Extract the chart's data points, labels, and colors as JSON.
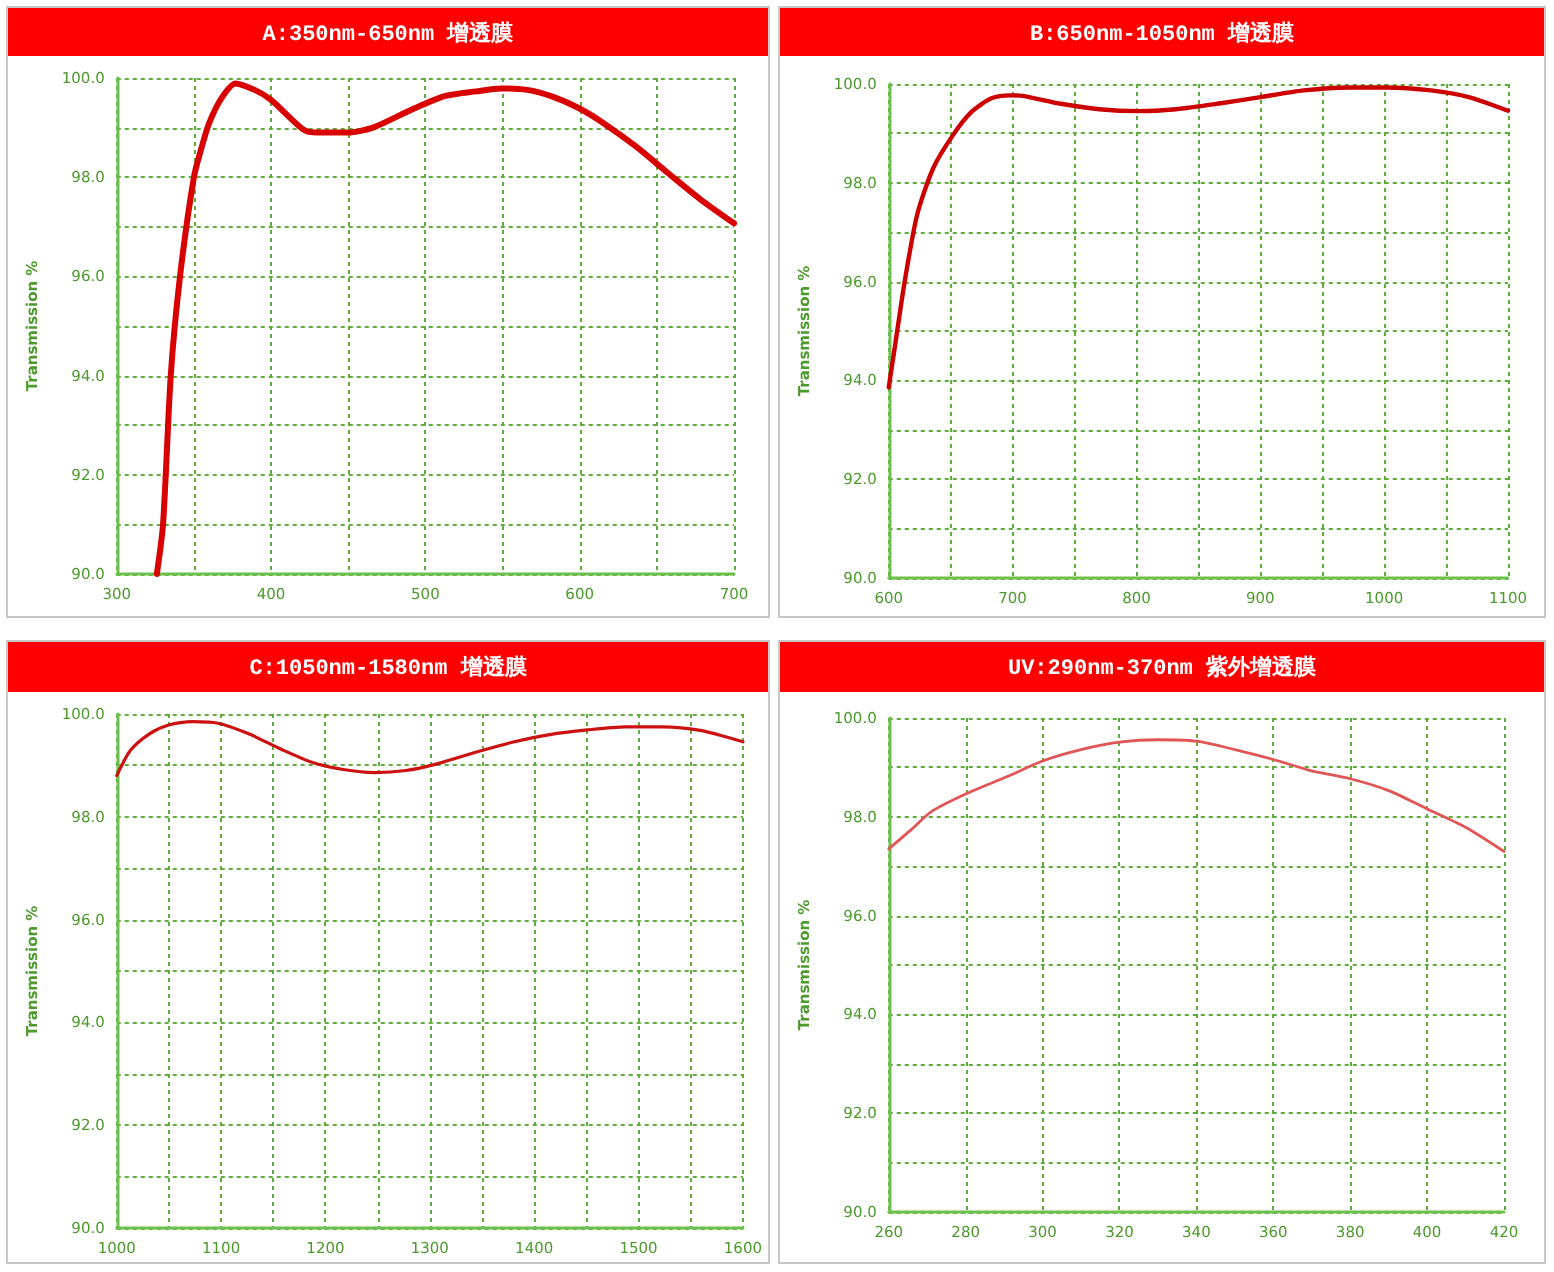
{
  "chart_data": [
    {
      "type": "line",
      "title": "A:350nm-650nm 增透膜",
      "ylabel": "Transmission %",
      "color": "#d90000",
      "grid": true,
      "x": [
        326,
        330,
        335,
        341,
        350,
        355,
        360,
        368,
        377,
        390,
        400,
        421,
        430,
        450,
        466,
        491,
        512,
        533,
        549,
        566,
        582,
        599,
        615,
        636,
        657,
        678,
        700
      ],
      "values": [
        90.0,
        91.0,
        94.0,
        96.0,
        98.0,
        98.6,
        99.1,
        99.6,
        99.89,
        99.75,
        99.56,
        98.96,
        98.9,
        98.9,
        99.0,
        99.36,
        99.63,
        99.73,
        99.79,
        99.76,
        99.63,
        99.4,
        99.1,
        98.63,
        98.09,
        97.56,
        97.07
      ],
      "xlim": [
        300,
        700
      ],
      "xticks": [
        300,
        {
          "value": 350,
          "label": null
        },
        400,
        {
          "value": 450,
          "label": null
        },
        500,
        {
          "value": 550,
          "label": null
        },
        600,
        {
          "value": 650,
          "label": null
        },
        700
      ],
      "ylim": [
        90,
        100
      ],
      "yticks": [
        {
          "value": 90,
          "label": "90.0"
        },
        {
          "value": 91,
          "label": null
        },
        {
          "value": 92,
          "label": "92.0"
        },
        {
          "value": 93,
          "label": null
        },
        {
          "value": 94,
          "label": "94.0"
        },
        {
          "value": 95,
          "label": null
        },
        {
          "value": 96,
          "label": "96.0"
        },
        {
          "value": 97,
          "label": null
        },
        {
          "value": 98,
          "label": "98.0"
        },
        {
          "value": 99,
          "label": null
        },
        {
          "value": 100,
          "label": "100.0"
        }
      ]
    },
    {
      "type": "line",
      "title": "B:650nm-1050nm 增透膜",
      "ylabel": "Transmission %",
      "color": "#cc0000",
      "grid": true,
      "x": [
        600,
        605,
        613,
        623,
        636,
        652,
        667,
        683,
        698,
        708,
        739,
        770,
        801,
        832,
        868,
        899,
        935,
        971,
        1002,
        1038,
        1069,
        1100
      ],
      "values": [
        93.86,
        94.69,
        96.02,
        97.36,
        98.3,
        98.97,
        99.44,
        99.71,
        99.77,
        99.76,
        99.6,
        99.49,
        99.45,
        99.49,
        99.61,
        99.73,
        99.87,
        99.93,
        99.93,
        99.87,
        99.73,
        99.46
      ],
      "xlim": [
        600,
        1100
      ],
      "xticks": [
        600,
        {
          "value": 650,
          "label": null
        },
        700,
        {
          "value": 750,
          "label": null
        },
        800,
        {
          "value": 850,
          "label": null
        },
        900,
        {
          "value": 950,
          "label": null
        },
        1000,
        {
          "value": 1050,
          "label": null
        },
        1100
      ],
      "ylim": [
        90,
        100
      ],
      "yticks": [
        {
          "value": 90,
          "label": "90.0"
        },
        {
          "value": 91,
          "label": null
        },
        {
          "value": 92,
          "label": "92.0"
        },
        {
          "value": 93,
          "label": null
        },
        {
          "value": 94,
          "label": "94.0"
        },
        {
          "value": 95,
          "label": null
        },
        {
          "value": 96,
          "label": "96.0"
        },
        {
          "value": 97,
          "label": null
        },
        {
          "value": 98,
          "label": "98.0"
        },
        {
          "value": 99,
          "label": null
        },
        {
          "value": 100,
          "label": "100.0"
        }
      ]
    },
    {
      "type": "line",
      "title": "C:1050nm-1580nm 增透膜",
      "ylabel": "Transmission %",
      "color": "#cc1111",
      "grid": true,
      "x": [
        1000,
        1013,
        1031,
        1049,
        1073,
        1097,
        1127,
        1157,
        1187,
        1217,
        1247,
        1277,
        1307,
        1343,
        1379,
        1415,
        1451,
        1487,
        1523,
        1559,
        1600
      ],
      "values": [
        98.8,
        99.29,
        99.61,
        99.78,
        99.85,
        99.82,
        99.61,
        99.32,
        99.06,
        98.92,
        98.86,
        98.9,
        99.03,
        99.25,
        99.45,
        99.6,
        99.69,
        99.75,
        99.75,
        99.68,
        99.46
      ],
      "xlim": [
        1000,
        1600
      ],
      "xticks": [
        1000,
        {
          "value": 1050,
          "label": null
        },
        1100,
        {
          "value": 1150,
          "label": null
        },
        1200,
        {
          "value": 1250,
          "label": null
        },
        1300,
        {
          "value": 1350,
          "label": null
        },
        1400,
        {
          "value": 1450,
          "label": null
        },
        1500,
        {
          "value": 1550,
          "label": null
        },
        1600
      ],
      "ylim": [
        90,
        100
      ],
      "yticks": [
        {
          "value": 90,
          "label": "90.0"
        },
        {
          "value": 91,
          "label": null
        },
        {
          "value": 92,
          "label": "92.0"
        },
        {
          "value": 93,
          "label": null
        },
        {
          "value": 94,
          "label": "94.0"
        },
        {
          "value": 95,
          "label": null
        },
        {
          "value": 96,
          "label": "96.0"
        },
        {
          "value": 97,
          "label": null
        },
        {
          "value": 98,
          "label": "98.0"
        },
        {
          "value": 99,
          "label": null
        },
        {
          "value": 100,
          "label": "100.0"
        }
      ]
    },
    {
      "type": "line",
      "title": "UV:290nm-370nm 紫外增透膜",
      "ylabel": "Transmission %",
      "color": "#e05555",
      "grid": true,
      "x": [
        260,
        266,
        271,
        280,
        291,
        300,
        310,
        320,
        330,
        340,
        350,
        360,
        370,
        380,
        390,
        400,
        410,
        420
      ],
      "values": [
        97.35,
        97.75,
        98.1,
        98.46,
        98.82,
        99.13,
        99.36,
        99.51,
        99.56,
        99.53,
        99.36,
        99.16,
        98.93,
        98.77,
        98.53,
        98.16,
        97.79,
        97.3
      ],
      "xlim": [
        260,
        420
      ],
      "xticks": [
        260,
        280,
        300,
        320,
        340,
        360,
        380,
        400,
        420
      ],
      "ylim": [
        90,
        100
      ],
      "yticks": [
        {
          "value": 90,
          "label": "90.0"
        },
        {
          "value": 91,
          "label": null
        },
        {
          "value": 92,
          "label": "92.0"
        },
        {
          "value": 93,
          "label": null
        },
        {
          "value": 94,
          "label": "94.0"
        },
        {
          "value": 95,
          "label": null
        },
        {
          "value": 96,
          "label": "96.0"
        },
        {
          "value": 97,
          "label": null
        },
        {
          "value": 98,
          "label": "98.0"
        },
        {
          "value": 99,
          "label": null
        },
        {
          "value": 100,
          "label": "100.0"
        }
      ]
    }
  ]
}
